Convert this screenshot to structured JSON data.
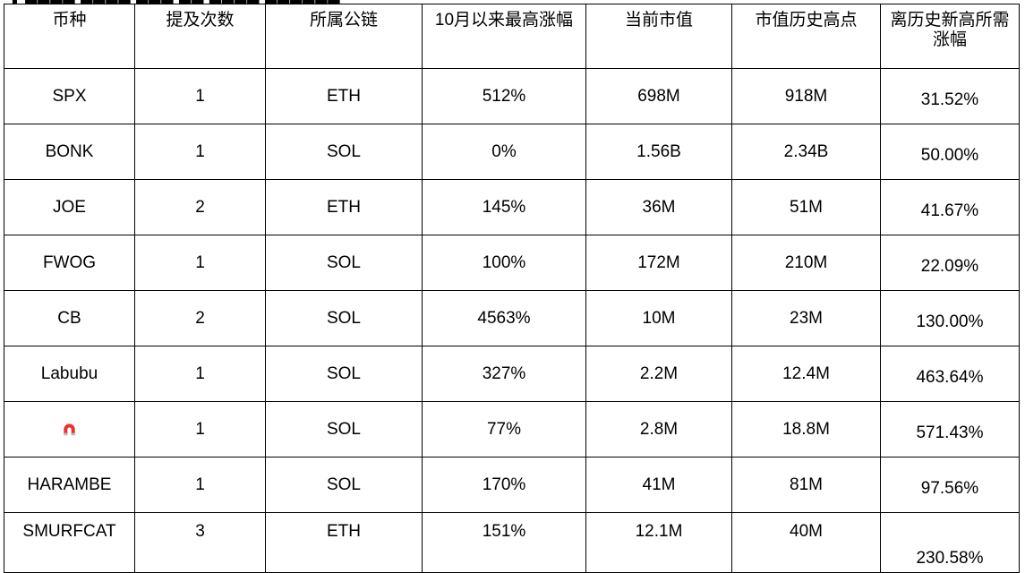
{
  "table": {
    "headers": [
      "币种",
      "提及次数",
      "所属公链",
      "10月以来最高涨幅",
      "当前市值",
      "市值历史高点",
      "离历史新高所需涨幅"
    ],
    "rows": [
      [
        "SPX",
        "1",
        "ETH",
        "512%",
        "698M",
        "918M",
        "31.52%"
      ],
      [
        "BONK",
        "1",
        "SOL",
        "0%",
        "1.56B",
        "2.34B",
        "50.00%"
      ],
      [
        "JOE",
        "2",
        "ETH",
        "145%",
        "36M",
        "51M",
        "41.67%"
      ],
      [
        "FWOG",
        "1",
        "SOL",
        "100%",
        "172M",
        "210M",
        "22.09%"
      ],
      [
        "CB",
        "2",
        "SOL",
        "4563%",
        "10M",
        "23M",
        "130.00%"
      ],
      [
        "Labubu",
        "1",
        "SOL",
        "327%",
        "2.2M",
        "12.4M",
        "463.64%"
      ],
      [
        "",
        "1",
        "SOL",
        "77%",
        "2.8M",
        "18.8M",
        "571.43%"
      ],
      [
        "HARAMBE",
        "1",
        "SOL",
        "170%",
        "41M",
        "81M",
        "97.56%"
      ],
      [
        "SMURFCAT",
        "3",
        "ETH",
        "151%",
        "12.1M",
        "40M",
        "230.58%"
      ]
    ],
    "row7_icon": "magnet-emoji-icon"
  },
  "colors": {
    "border": "#000000",
    "magnet_red": "#e8322b",
    "magnet_tip": "#b9bcc2"
  }
}
